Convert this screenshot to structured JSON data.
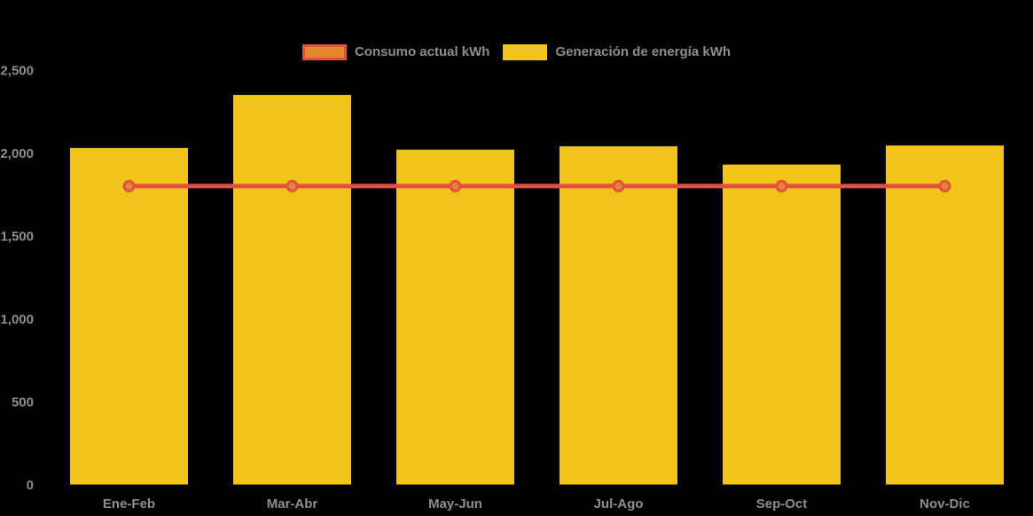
{
  "chart_data": {
    "type": "bar",
    "title": "",
    "xlabel": "",
    "ylabel": "",
    "categories": [
      "Ene-Feb",
      "Mar-Abr",
      "May-Jun",
      "Jul-Ago",
      "Sep-Oct",
      "Nov-Dic"
    ],
    "series": [
      {
        "name": "Consumo actual kWh",
        "type": "line",
        "values": [
          1800,
          1800,
          1800,
          1800,
          1800,
          1800
        ],
        "line_color": "#E25045",
        "marker_fill": "#E6872F"
      },
      {
        "name": "Generación de energía kWh",
        "type": "bar",
        "values": [
          2030,
          2350,
          2020,
          2040,
          1930,
          2045
        ],
        "color": "#F0C419"
      }
    ],
    "ylim": [
      0,
      2500
    ],
    "y_tick_step": 500,
    "y_ticks": [
      "0",
      "500",
      "1,000",
      "1,500",
      "2,000",
      "2,500"
    ],
    "grid": false,
    "legend_position": "top",
    "background_color": "#000000",
    "axis_text_color": "#8D8D8D"
  }
}
